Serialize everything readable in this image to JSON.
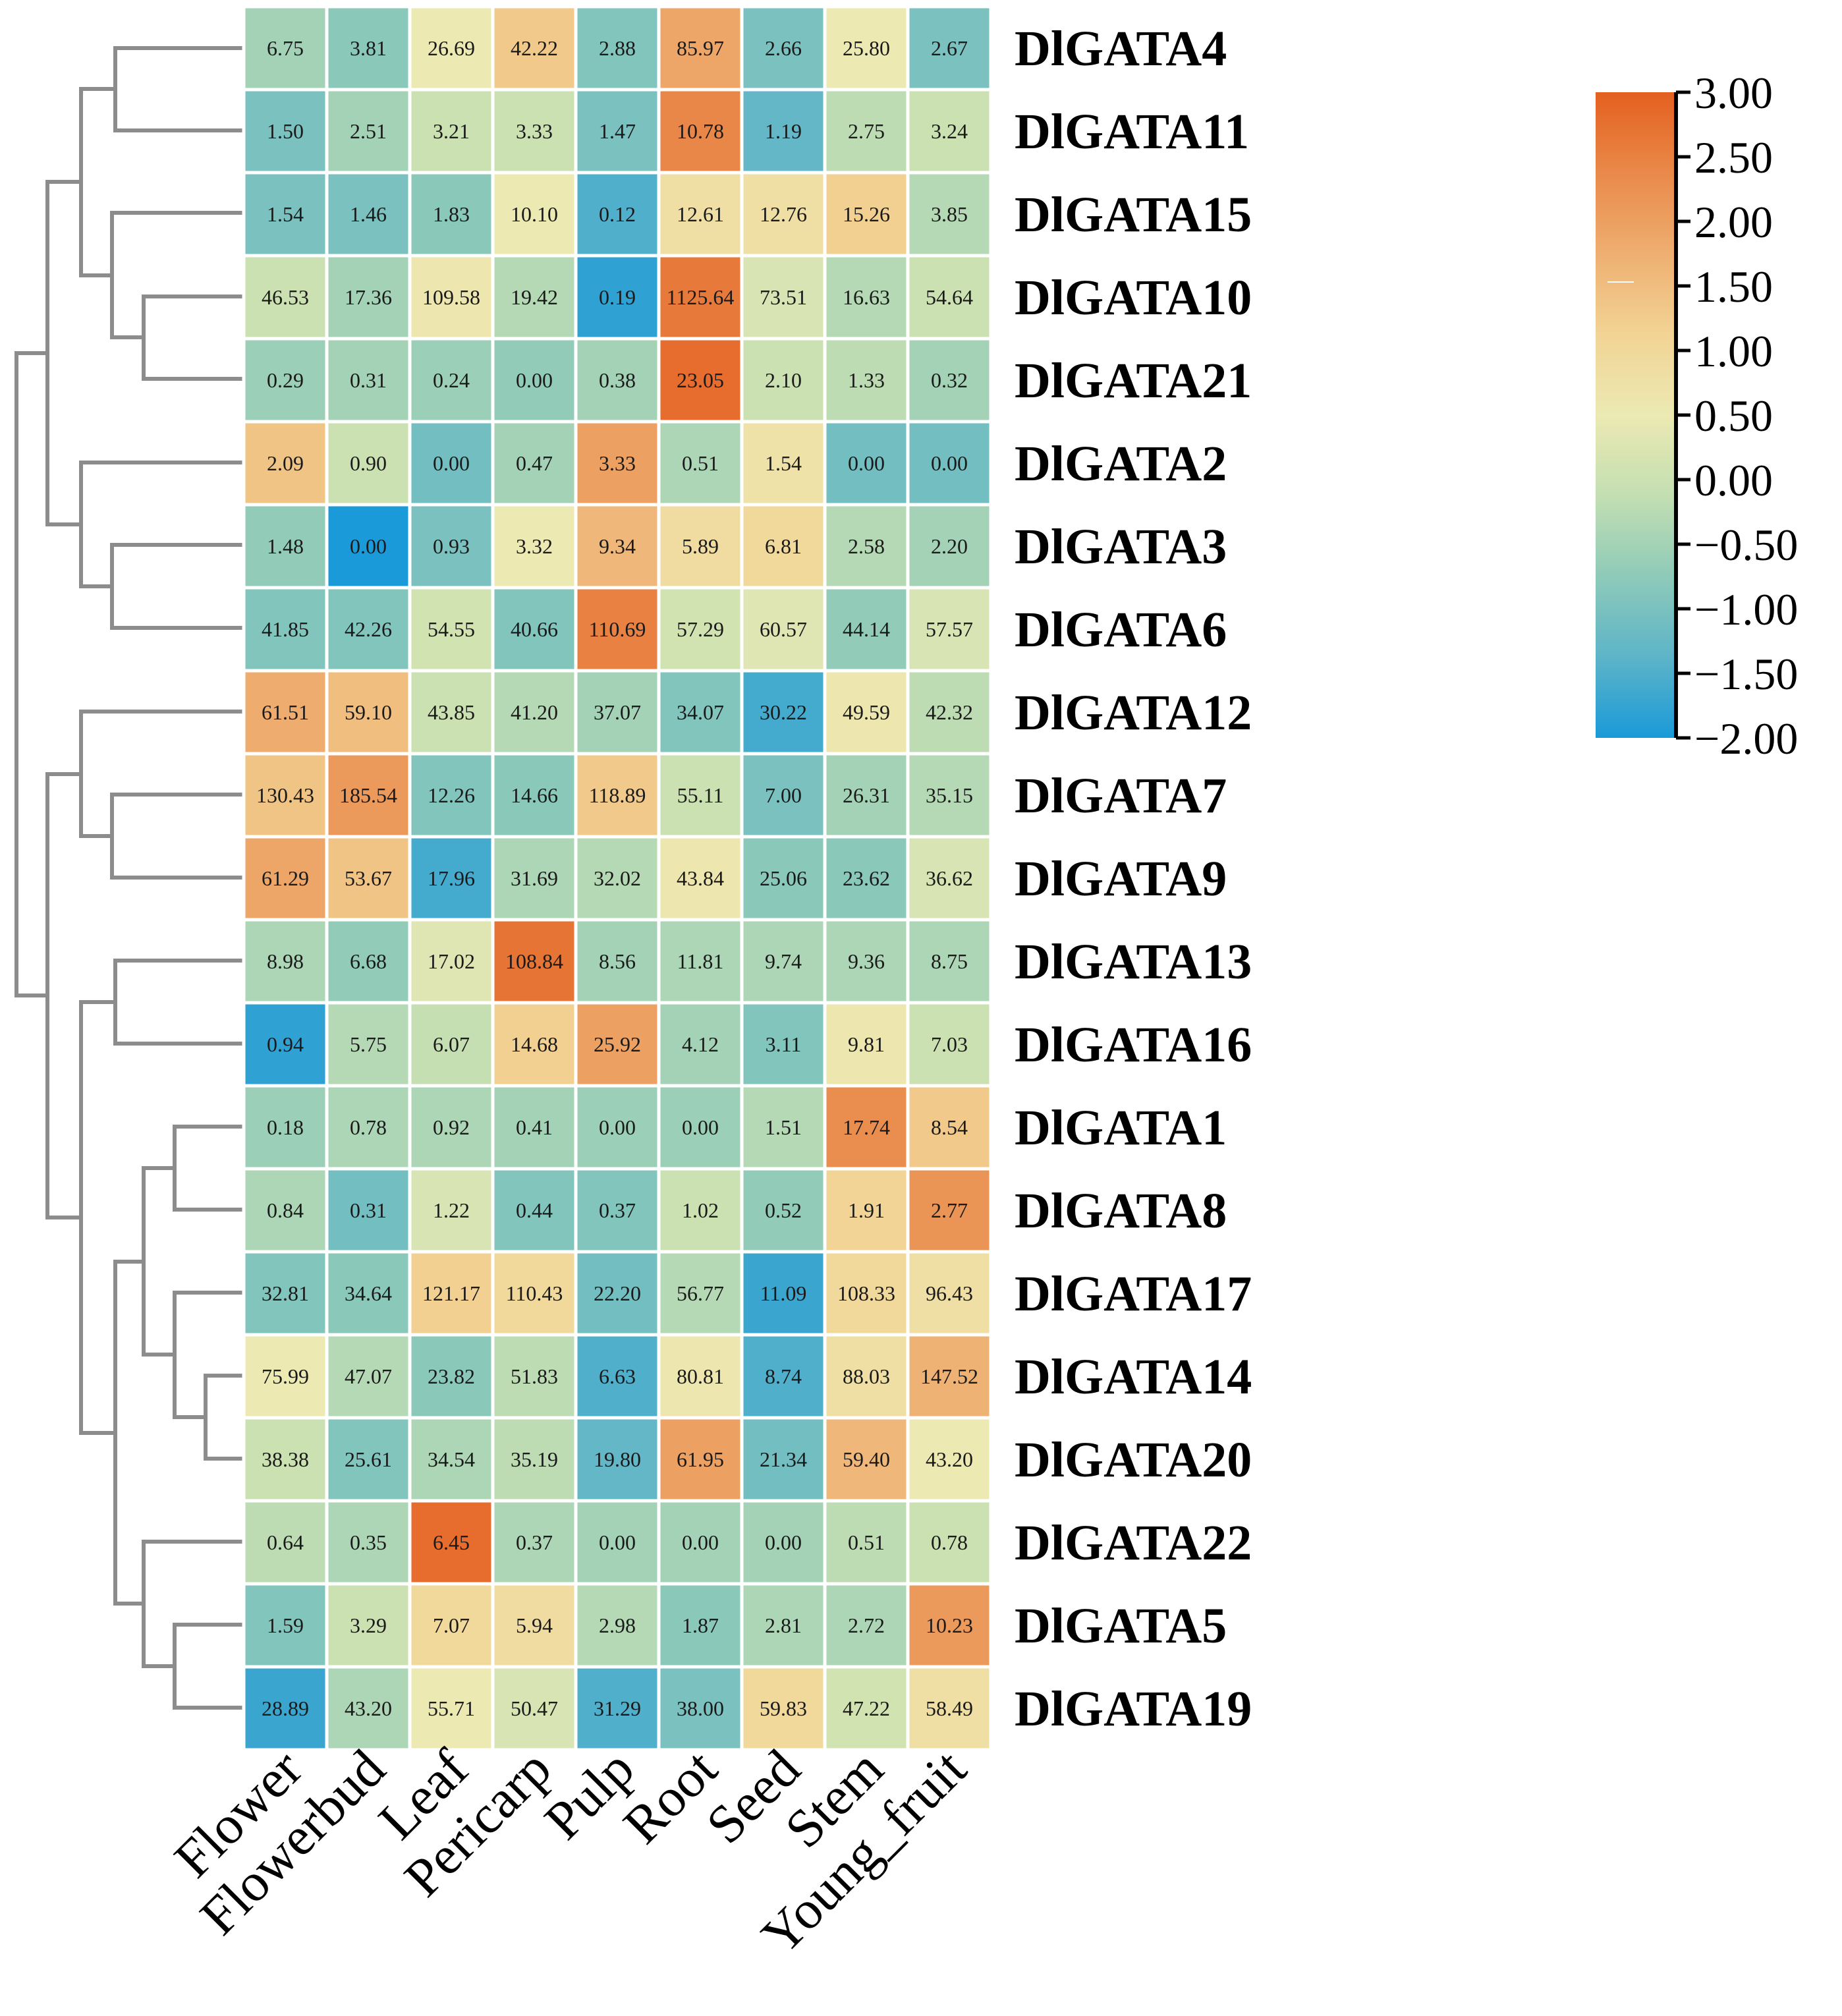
{
  "chart_data": {
    "type": "heatmap",
    "columns": [
      "Flower",
      "Flowerbud",
      "Leaf",
      "Pericarp",
      "Pulp",
      "Root",
      "Seed",
      "Stem",
      "Young_fruit"
    ],
    "rows": [
      "DlGATA4",
      "DlGATA11",
      "DlGATA15",
      "DlGATA10",
      "DlGATA21",
      "DlGATA2",
      "DlGATA3",
      "DlGATA6",
      "DlGATA12",
      "DlGATA7",
      "DlGATA9",
      "DlGATA13",
      "DlGATA16",
      "DlGATA1",
      "DlGATA8",
      "DlGATA17",
      "DlGATA14",
      "DlGATA20",
      "DlGATA22",
      "DlGATA5",
      "DlGATA19"
    ],
    "values": [
      [
        "6.75",
        "3.81",
        "26.69",
        "42.22",
        "2.88",
        "85.97",
        "2.66",
        "25.80",
        "2.67"
      ],
      [
        "1.50",
        "2.51",
        "3.21",
        "3.33",
        "1.47",
        "10.78",
        "1.19",
        "2.75",
        "3.24"
      ],
      [
        "1.54",
        "1.46",
        "1.83",
        "10.10",
        "0.12",
        "12.61",
        "12.76",
        "15.26",
        "3.85"
      ],
      [
        "46.53",
        "17.36",
        "109.58",
        "19.42",
        "0.19",
        "1125.64",
        "73.51",
        "16.63",
        "54.64"
      ],
      [
        "0.29",
        "0.31",
        "0.24",
        "0.00",
        "0.38",
        "23.05",
        "2.10",
        "1.33",
        "0.32"
      ],
      [
        "2.09",
        "0.90",
        "0.00",
        "0.47",
        "3.33",
        "0.51",
        "1.54",
        "0.00",
        "0.00"
      ],
      [
        "1.48",
        "0.00",
        "0.93",
        "3.32",
        "9.34",
        "5.89",
        "6.81",
        "2.58",
        "2.20"
      ],
      [
        "41.85",
        "42.26",
        "54.55",
        "40.66",
        "110.69",
        "57.29",
        "60.57",
        "44.14",
        "57.57"
      ],
      [
        "61.51",
        "59.10",
        "43.85",
        "41.20",
        "37.07",
        "34.07",
        "30.22",
        "49.59",
        "42.32"
      ],
      [
        "130.43",
        "185.54",
        "12.26",
        "14.66",
        "118.89",
        "55.11",
        "7.00",
        "26.31",
        "35.15"
      ],
      [
        "61.29",
        "53.67",
        "17.96",
        "31.69",
        "32.02",
        "43.84",
        "25.06",
        "23.62",
        "36.62"
      ],
      [
        "8.98",
        "6.68",
        "17.02",
        "108.84",
        "8.56",
        "11.81",
        "9.74",
        "9.36",
        "8.75"
      ],
      [
        "0.94",
        "5.75",
        "6.07",
        "14.68",
        "25.92",
        "4.12",
        "3.11",
        "9.81",
        "7.03"
      ],
      [
        "0.18",
        "0.78",
        "0.92",
        "0.41",
        "0.00",
        "0.00",
        "1.51",
        "17.74",
        "8.54"
      ],
      [
        "0.84",
        "0.31",
        "1.22",
        "0.44",
        "0.37",
        "1.02",
        "0.52",
        "1.91",
        "2.77"
      ],
      [
        "32.81",
        "34.64",
        "121.17",
        "110.43",
        "22.20",
        "56.77",
        "11.09",
        "108.33",
        "96.43"
      ],
      [
        "75.99",
        "47.07",
        "23.82",
        "51.83",
        "6.63",
        "80.81",
        "8.74",
        "88.03",
        "147.52"
      ],
      [
        "38.38",
        "25.61",
        "34.54",
        "35.19",
        "19.80",
        "61.95",
        "21.34",
        "59.40",
        "43.20"
      ],
      [
        "0.64",
        "0.35",
        "6.45",
        "0.37",
        "0.00",
        "0.00",
        "0.00",
        "0.51",
        "0.78"
      ],
      [
        "1.59",
        "3.29",
        "7.07",
        "5.94",
        "2.98",
        "1.87",
        "2.81",
        "2.72",
        "10.23"
      ],
      [
        "28.89",
        "43.20",
        "55.71",
        "50.47",
        "31.29",
        "38.00",
        "59.83",
        "47.22",
        "58.49"
      ]
    ],
    "row_zscores": [
      [
        -0.5,
        -0.8,
        0.5,
        1.3,
        -0.9,
        1.9,
        -1.0,
        0.5,
        -1.0
      ],
      [
        -1.0,
        -0.5,
        0.0,
        0.0,
        -1.0,
        2.4,
        -1.3,
        -0.2,
        0.0
      ],
      [
        -1.0,
        -1.0,
        -0.8,
        0.5,
        -1.5,
        0.8,
        0.8,
        1.2,
        -0.3
      ],
      [
        0.0,
        -0.5,
        0.6,
        -0.3,
        -1.8,
        2.6,
        0.2,
        -0.3,
        0.0
      ],
      [
        -0.6,
        -0.5,
        -0.6,
        -0.7,
        -0.5,
        2.8,
        0.0,
        -0.2,
        -0.5
      ],
      [
        1.4,
        0.0,
        -1.1,
        -0.5,
        2.0,
        -0.4,
        0.7,
        -1.1,
        -1.1
      ],
      [
        -0.7,
        -2.0,
        -1.0,
        0.5,
        1.6,
        0.9,
        1.0,
        -0.3,
        -0.5
      ],
      [
        -0.9,
        -0.9,
        0.1,
        -0.9,
        2.5,
        0.1,
        0.3,
        -0.7,
        0.2
      ],
      [
        1.8,
        1.5,
        0.0,
        -0.3,
        -0.5,
        -0.9,
        -1.6,
        0.6,
        -0.2
      ],
      [
        1.4,
        2.1,
        -0.9,
        -0.8,
        1.3,
        0.0,
        -1.0,
        -0.5,
        -0.3
      ],
      [
        1.9,
        1.4,
        -1.6,
        -0.4,
        -0.3,
        0.6,
        -0.8,
        -0.8,
        0.2
      ],
      [
        -0.4,
        -0.7,
        0.3,
        2.7,
        -0.5,
        -0.4,
        -0.4,
        -0.4,
        -0.4
      ],
      [
        -1.8,
        -0.3,
        -0.1,
        1.2,
        2.0,
        -0.5,
        -0.9,
        0.6,
        0.0
      ],
      [
        -0.6,
        -0.4,
        -0.4,
        -0.5,
        -0.6,
        -0.6,
        -0.3,
        2.3,
        1.3
      ],
      [
        -0.4,
        -1.1,
        0.2,
        -0.9,
        -0.9,
        0.0,
        -0.7,
        1.1,
        2.2
      ],
      [
        -0.9,
        -0.8,
        1.2,
        1.0,
        -1.1,
        -0.3,
        -1.7,
        1.0,
        0.8
      ],
      [
        0.5,
        -0.3,
        -0.8,
        -0.2,
        -1.5,
        0.6,
        -1.5,
        0.8,
        1.7
      ],
      [
        0.0,
        -0.9,
        -0.4,
        -0.2,
        -1.3,
        2.0,
        -1.1,
        1.6,
        0.5
      ],
      [
        -0.2,
        -0.4,
        2.8,
        -0.4,
        -0.5,
        -0.5,
        -0.5,
        -0.2,
        0.0
      ],
      [
        -0.9,
        0.0,
        1.0,
        0.9,
        -0.3,
        -0.8,
        -0.4,
        -0.4,
        2.1
      ],
      [
        -1.7,
        -0.4,
        0.5,
        0.2,
        -1.5,
        -1.0,
        1.0,
        0.1,
        0.8
      ]
    ],
    "colorbar": {
      "ticks": [
        "3.00",
        "2.50",
        "2.00",
        "1.50",
        "1.00",
        "0.50",
        "0.00",
        "−0.50",
        "−1.00",
        "−1.50",
        "−2.00"
      ],
      "range": [
        -2.0,
        3.0
      ],
      "colors": [
        "#1a9ad8",
        "#5db4c8",
        "#8ecab9",
        "#c3dfb2",
        "#ece9b3",
        "#f2d495",
        "#eeaf71",
        "#e9894a",
        "#e4601f"
      ]
    },
    "title": "",
    "xlabel": "",
    "ylabel": ""
  }
}
